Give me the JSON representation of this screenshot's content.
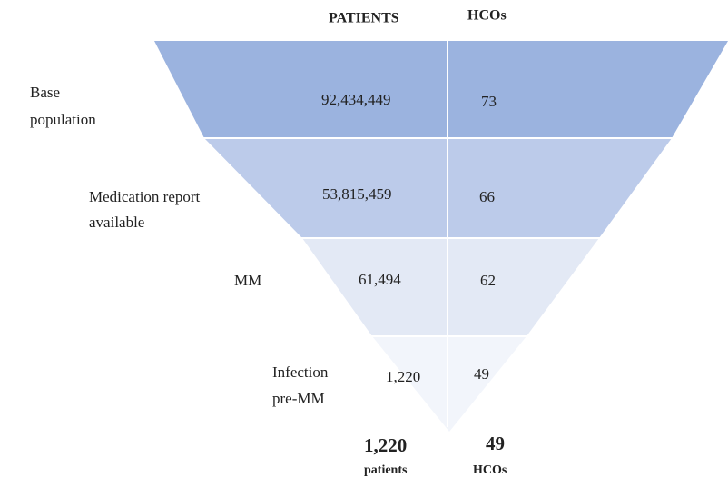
{
  "header": {
    "patients": "PATIENTS",
    "hcos": "HCOs"
  },
  "levels": [
    {
      "label_lines": [
        "Base",
        "population"
      ],
      "patients": "92,434,449",
      "hcos": "73"
    },
    {
      "label_lines": [
        "Medication report",
        "available"
      ],
      "patients": "53,815,459",
      "hcos": "66"
    },
    {
      "label_lines": [
        "MM"
      ],
      "patients": "61,494",
      "hcos": "62"
    },
    {
      "label_lines": [
        "Infection",
        "pre-MM"
      ],
      "patients": "1,220",
      "hcos": "49"
    }
  ],
  "footer": {
    "patients_value": "1,220",
    "patients_unit": "patients",
    "hcos_value": "49",
    "hcos_unit": "HCOs"
  }
}
